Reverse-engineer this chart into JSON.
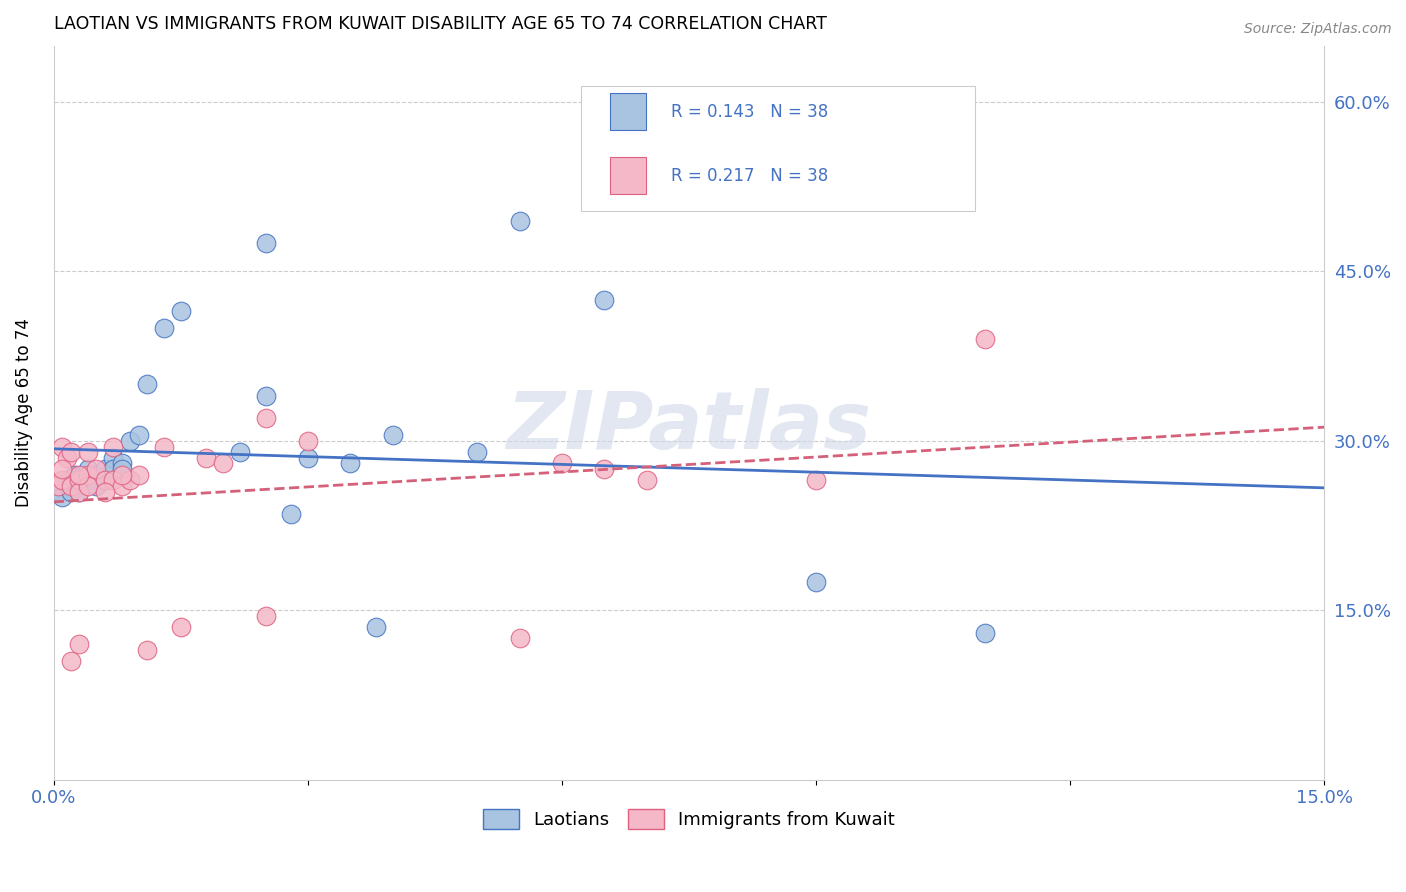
{
  "title": "LAOTIAN VS IMMIGRANTS FROM KUWAIT DISABILITY AGE 65 TO 74 CORRELATION CHART",
  "source": "Source: ZipAtlas.com",
  "ylabel": "Disability Age 65 to 74",
  "xlim": [
    0.0,
    0.15
  ],
  "ylim": [
    0.0,
    0.65
  ],
  "blue_color": "#a8c4e0",
  "pink_color": "#f4b8c8",
  "line_blue": "#4472c4",
  "line_pink": "#d4607a",
  "text_color": "#4472c4",
  "watermark": "ZIPatlas",
  "laotians_x": [
    0.0005,
    0.001,
    0.001,
    0.0015,
    0.002,
    0.002,
    0.0025,
    0.003,
    0.003,
    0.0035,
    0.004,
    0.004,
    0.005,
    0.005,
    0.006,
    0.006,
    0.007,
    0.007,
    0.008,
    0.008,
    0.009,
    0.01,
    0.011,
    0.013,
    0.015,
    0.022,
    0.025,
    0.028,
    0.03,
    0.035,
    0.038,
    0.05,
    0.055,
    0.065,
    0.09,
    0.11,
    0.025,
    0.04
  ],
  "laotians_y": [
    0.255,
    0.26,
    0.25,
    0.265,
    0.255,
    0.265,
    0.27,
    0.26,
    0.255,
    0.27,
    0.275,
    0.265,
    0.27,
    0.26,
    0.275,
    0.265,
    0.285,
    0.275,
    0.28,
    0.275,
    0.3,
    0.305,
    0.35,
    0.4,
    0.415,
    0.29,
    0.34,
    0.235,
    0.285,
    0.28,
    0.135,
    0.29,
    0.495,
    0.425,
    0.175,
    0.13,
    0.475,
    0.305
  ],
  "kuwait_x": [
    0.0005,
    0.001,
    0.001,
    0.0015,
    0.002,
    0.002,
    0.003,
    0.003,
    0.004,
    0.004,
    0.005,
    0.006,
    0.007,
    0.007,
    0.008,
    0.009,
    0.01,
    0.011,
    0.013,
    0.015,
    0.018,
    0.02,
    0.025,
    0.03,
    0.06,
    0.065,
    0.07,
    0.003,
    0.002,
    0.004,
    0.006,
    0.008,
    0.003,
    0.001,
    0.025,
    0.055,
    0.09,
    0.11
  ],
  "kuwait_y": [
    0.26,
    0.295,
    0.265,
    0.285,
    0.29,
    0.26,
    0.265,
    0.255,
    0.27,
    0.26,
    0.275,
    0.265,
    0.295,
    0.265,
    0.26,
    0.265,
    0.27,
    0.115,
    0.295,
    0.135,
    0.285,
    0.28,
    0.32,
    0.3,
    0.28,
    0.275,
    0.265,
    0.27,
    0.105,
    0.29,
    0.255,
    0.27,
    0.12,
    0.275,
    0.145,
    0.125,
    0.265,
    0.39
  ]
}
